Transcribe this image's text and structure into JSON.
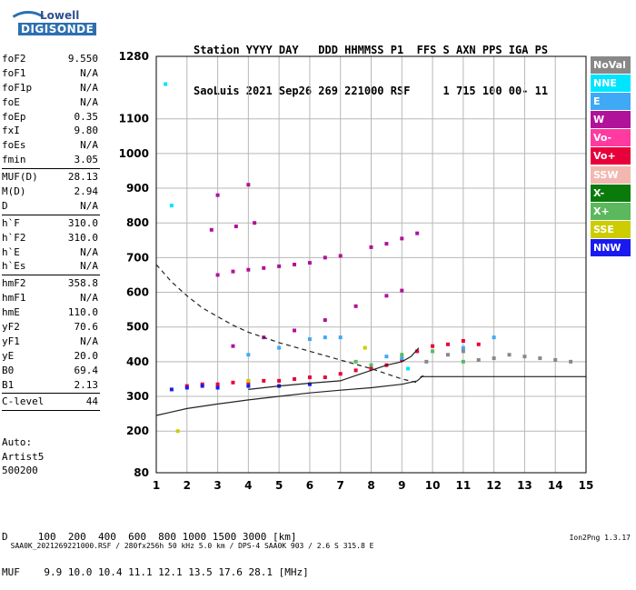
{
  "logo": {
    "line1": "Lowell",
    "line2": "DIGISONDE"
  },
  "header": {
    "labels": "Station YYYY DAY   DDD HHMMSS P1  FFS S AXN PPS IGA PS",
    "values": "SaoLuis 2021 Sep26 269 221000 RSF     1 715 100 00- 11"
  },
  "params": {
    "group1": [
      {
        "name": "foF2",
        "value": "9.550"
      },
      {
        "name": "foF1",
        "value": "N/A"
      },
      {
        "name": "foF1p",
        "value": "N/A"
      },
      {
        "name": "foE",
        "value": "N/A"
      },
      {
        "name": "foEp",
        "value": "0.35"
      },
      {
        "name": "fxI",
        "value": "9.80"
      },
      {
        "name": "foEs",
        "value": "N/A"
      },
      {
        "name": "fmin",
        "value": "3.05"
      }
    ],
    "group2": [
      {
        "name": "MUF(D)",
        "value": "28.13"
      },
      {
        "name": "M(D)",
        "value": "2.94"
      },
      {
        "name": "D",
        "value": "N/A"
      }
    ],
    "group3": [
      {
        "name": "h`F",
        "value": "310.0"
      },
      {
        "name": "h`F2",
        "value": "310.0"
      },
      {
        "name": "h`E",
        "value": "N/A"
      },
      {
        "name": "h`Es",
        "value": "N/A"
      }
    ],
    "group4": [
      {
        "name": "hmF2",
        "value": "358.8"
      },
      {
        "name": "hmF1",
        "value": "N/A"
      },
      {
        "name": "hmE",
        "value": "110.0"
      },
      {
        "name": "yF2",
        "value": "70.6"
      },
      {
        "name": "yF1",
        "value": "N/A"
      },
      {
        "name": "yE",
        "value": "20.0"
      },
      {
        "name": "B0",
        "value": "69.4"
      },
      {
        "name": "B1",
        "value": "2.13"
      }
    ],
    "group5": [
      {
        "name": "C-level",
        "value": "44"
      }
    ]
  },
  "auto": {
    "line1": "Auto:",
    "line2": "Artist5",
    "line3": "500200"
  },
  "legend": [
    {
      "label": "NoVal",
      "color": "#888888"
    },
    {
      "label": "NNE",
      "color": "#00e5ff"
    },
    {
      "label": "E",
      "color": "#3fa9f5"
    },
    {
      "label": "W",
      "color": "#b0129a"
    },
    {
      "label": "Vo-",
      "color": "#ff3aa0"
    },
    {
      "label": "Vo+",
      "color": "#e8003a"
    },
    {
      "label": "SSW",
      "color": "#f2b8b0"
    },
    {
      "label": "X-",
      "color": "#0a7a0a"
    },
    {
      "label": "X+",
      "color": "#5cb85c"
    },
    {
      "label": "SSE",
      "color": "#cccc00"
    },
    {
      "label": "NNW",
      "color": "#1a1aee"
    }
  ],
  "bottom": {
    "d_row": "D     100  200  400  600  800 1000 1500 3000 [km]",
    "muf_row": "MUF    9.9 10.0 10.4 11.1 12.1 13.5 17.6 28.1 [MHz]"
  },
  "footer": {
    "text": "SAA0K_2021269221000.RSF / 280fx256h 50 kHz 5.0 km / DPS-4 SAA0K 903 / 2.6 S 315.8 E",
    "version": "Ion2Png 1.3.17"
  },
  "chart_data": {
    "type": "scatter",
    "xlim": [
      1,
      15
    ],
    "ylim": [
      80,
      1280
    ],
    "xticks": [
      1,
      2,
      3,
      4,
      5,
      6,
      7,
      8,
      9,
      10,
      11,
      12,
      13,
      14,
      15
    ],
    "yticks": [
      80,
      200,
      300,
      400,
      500,
      600,
      700,
      800,
      900,
      1000,
      1100,
      1280
    ],
    "grid": true,
    "series": [
      {
        "name": "W",
        "color": "#b0129a",
        "points": [
          [
            3.0,
            650
          ],
          [
            3.5,
            660
          ],
          [
            4.0,
            665
          ],
          [
            4.5,
            670
          ],
          [
            5.0,
            675
          ],
          [
            5.5,
            680
          ],
          [
            6.0,
            685
          ],
          [
            6.5,
            700
          ],
          [
            7.0,
            705
          ],
          [
            8.0,
            730
          ],
          [
            8.5,
            740
          ],
          [
            9.0,
            755
          ],
          [
            9.5,
            770
          ],
          [
            3.5,
            445
          ],
          [
            4.5,
            470
          ],
          [
            5.5,
            490
          ],
          [
            6.5,
            520
          ],
          [
            7.5,
            560
          ],
          [
            8.5,
            590
          ],
          [
            9.0,
            605
          ],
          [
            2.8,
            780
          ],
          [
            3.6,
            790
          ],
          [
            4.2,
            800
          ],
          [
            3.0,
            880
          ],
          [
            4.0,
            910
          ]
        ]
      },
      {
        "name": "Vo+",
        "color": "#e8003a",
        "points": [
          [
            2.0,
            330
          ],
          [
            2.5,
            335
          ],
          [
            3.0,
            335
          ],
          [
            3.5,
            340
          ],
          [
            4.0,
            340
          ],
          [
            4.5,
            345
          ],
          [
            5.0,
            345
          ],
          [
            5.5,
            350
          ],
          [
            6.0,
            355
          ],
          [
            6.5,
            355
          ],
          [
            7.0,
            365
          ],
          [
            7.5,
            375
          ],
          [
            8.0,
            380
          ],
          [
            8.5,
            390
          ],
          [
            9.0,
            405
          ],
          [
            9.5,
            430
          ],
          [
            10.0,
            445
          ],
          [
            10.5,
            450
          ],
          [
            11.0,
            460
          ],
          [
            11.5,
            450
          ]
        ]
      },
      {
        "name": "E",
        "color": "#3fa9f5",
        "points": [
          [
            4.0,
            420
          ],
          [
            5.0,
            440
          ],
          [
            6.0,
            465
          ],
          [
            6.5,
            470
          ],
          [
            7.0,
            470
          ],
          [
            8.5,
            415
          ],
          [
            9.0,
            410
          ],
          [
            11.0,
            440
          ],
          [
            12.0,
            470
          ]
        ]
      },
      {
        "name": "NNW",
        "color": "#1a1aee",
        "points": [
          [
            1.5,
            320
          ],
          [
            2.0,
            325
          ],
          [
            2.5,
            330
          ],
          [
            3.0,
            325
          ],
          [
            4.0,
            330
          ],
          [
            5.0,
            330
          ],
          [
            6.0,
            335
          ]
        ]
      },
      {
        "name": "NoVal",
        "color": "#888888",
        "points": [
          [
            9.8,
            400
          ],
          [
            10.5,
            420
          ],
          [
            11.0,
            430
          ],
          [
            11.5,
            405
          ],
          [
            12.0,
            410
          ],
          [
            12.5,
            420
          ],
          [
            13.0,
            415
          ],
          [
            13.5,
            410
          ],
          [
            14.0,
            405
          ],
          [
            14.5,
            400
          ]
        ]
      },
      {
        "name": "X+",
        "color": "#5cb85c",
        "points": [
          [
            7.5,
            400
          ],
          [
            8.0,
            390
          ],
          [
            9.0,
            420
          ],
          [
            10.0,
            430
          ],
          [
            11.0,
            400
          ]
        ]
      },
      {
        "name": "NNE",
        "color": "#00e5ff",
        "points": [
          [
            1.3,
            1200
          ],
          [
            1.5,
            850
          ],
          [
            9.2,
            380
          ]
        ]
      },
      {
        "name": "SSE",
        "color": "#cccc00",
        "points": [
          [
            1.7,
            200
          ],
          [
            4.0,
            345
          ],
          [
            7.8,
            440
          ]
        ]
      }
    ],
    "curves": [
      {
        "style": "dashed",
        "points": [
          [
            1.0,
            680
          ],
          [
            1.5,
            630
          ],
          [
            2.0,
            590
          ],
          [
            2.5,
            555
          ],
          [
            3.0,
            530
          ],
          [
            3.5,
            505
          ],
          [
            4.0,
            485
          ],
          [
            5.0,
            455
          ],
          [
            6.0,
            430
          ],
          [
            7.0,
            405
          ],
          [
            8.0,
            380
          ],
          [
            8.5,
            365
          ],
          [
            9.0,
            350
          ],
          [
            9.5,
            340
          ]
        ]
      },
      {
        "style": "solid",
        "points": [
          [
            1.0,
            245
          ],
          [
            1.5,
            255
          ],
          [
            2.0,
            265
          ],
          [
            3.0,
            278
          ],
          [
            4.0,
            290
          ],
          [
            5.0,
            300
          ],
          [
            6.0,
            310
          ],
          [
            7.0,
            318
          ],
          [
            8.0,
            325
          ],
          [
            9.0,
            335
          ],
          [
            9.5,
            345
          ],
          [
            9.7,
            360
          ]
        ]
      },
      {
        "style": "solid",
        "points": [
          [
            4.0,
            320
          ],
          [
            5.0,
            330
          ],
          [
            6.0,
            338
          ],
          [
            7.0,
            345
          ],
          [
            7.5,
            360
          ],
          [
            8.0,
            375
          ],
          [
            8.5,
            390
          ],
          [
            9.0,
            400
          ],
          [
            9.3,
            415
          ],
          [
            9.55,
            440
          ]
        ]
      }
    ],
    "lines": [
      {
        "style": "solid",
        "points": [
          [
            9.6,
            357
          ],
          [
            15,
            357
          ]
        ]
      }
    ]
  }
}
